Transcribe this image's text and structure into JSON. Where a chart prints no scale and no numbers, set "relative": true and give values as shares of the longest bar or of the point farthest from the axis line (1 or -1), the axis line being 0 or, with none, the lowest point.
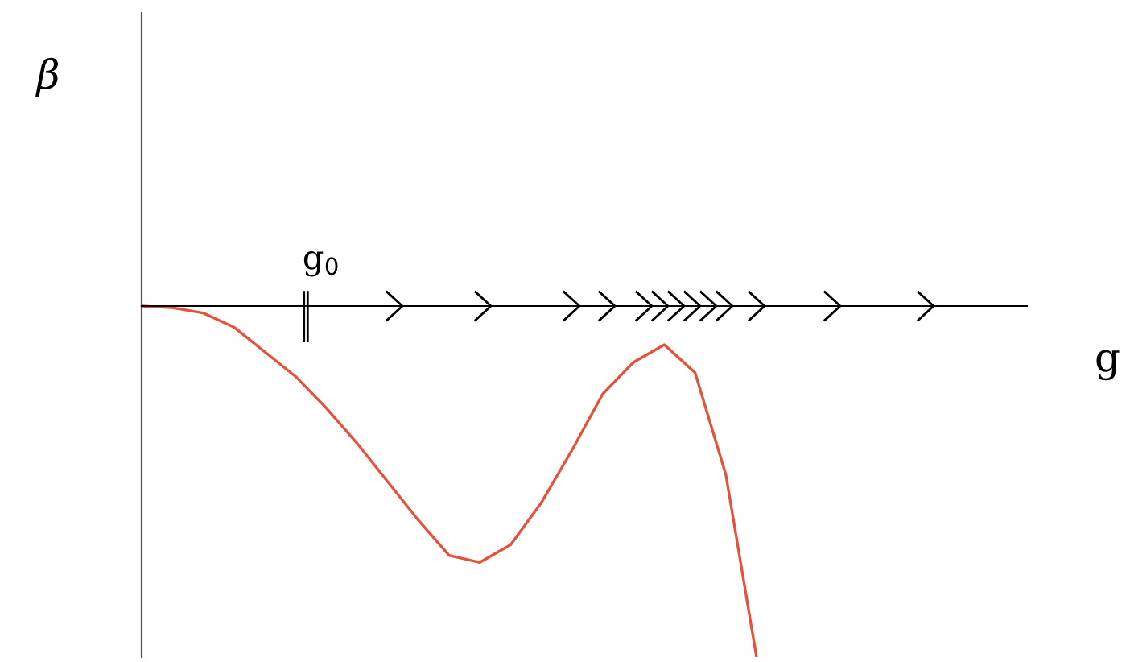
{
  "chart_data": {
    "type": "line",
    "relative": true,
    "categories": [
      null,
      null,
      null,
      null,
      null,
      null,
      null,
      null,
      null,
      null,
      null,
      null,
      null,
      null,
      null,
      null,
      null,
      null,
      null,
      null,
      null
    ],
    "series": [
      {
        "color": "#e8503a",
        "values": [
          0,
          -0.005,
          -0.02,
          -0.06,
          -0.13,
          -0.2,
          -0.29,
          -0.39,
          -0.5,
          -0.61,
          -0.71,
          -0.73,
          -0.68,
          -0.56,
          -0.41,
          -0.25,
          -0.16,
          -0.11,
          -0.19,
          -0.48,
          -1
        ]
      }
    ],
    "annotations": [
      "g$_{0}$",
      "β",
      "g"
    ],
    "marker": "none",
    "line_style": "solid"
  }
}
